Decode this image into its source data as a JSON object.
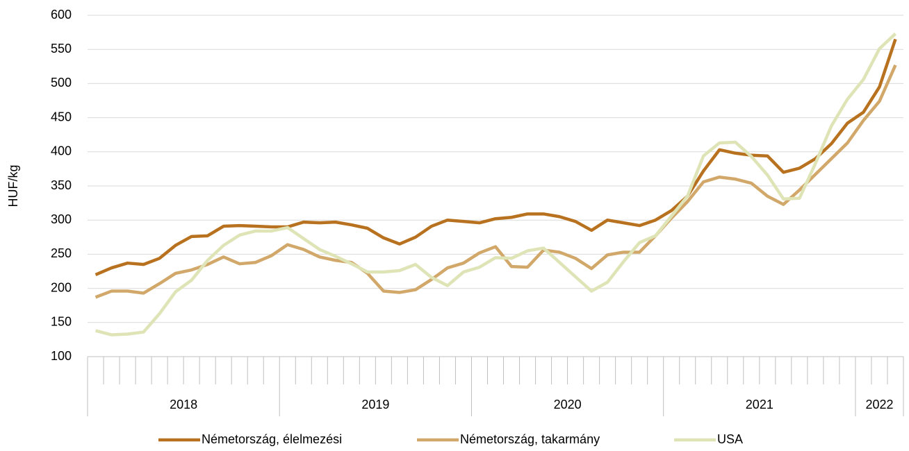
{
  "chart_data": {
    "type": "line",
    "y_label": "HUF/kg",
    "categories": [
      null,
      null,
      null,
      null,
      null,
      null,
      null,
      null,
      null,
      null,
      null,
      null,
      null,
      null,
      null,
      null,
      null,
      null,
      null,
      null,
      null,
      null,
      null,
      null,
      null,
      null,
      null,
      null,
      null,
      null,
      null,
      null,
      null,
      null,
      null,
      null,
      null,
      null,
      null,
      null,
      null,
      null,
      null,
      null,
      null,
      null,
      null,
      null,
      null,
      null,
      null
    ],
    "year_groups": [
      "2018",
      "2019",
      "2020",
      "2021",
      "2022"
    ],
    "group_sizes": [
      12,
      12,
      12,
      12,
      3
    ],
    "ylim": [
      100,
      600
    ],
    "yticks": [
      100,
      150,
      200,
      250,
      300,
      350,
      400,
      450,
      500,
      550,
      600
    ],
    "grid": true,
    "legend": "bottom",
    "series": [
      {
        "name": "Németország, élelmezési",
        "color": "#b8721f",
        "values": [
          220,
          230,
          237,
          235,
          244,
          263,
          276,
          277,
          291,
          292,
          291,
          290,
          290,
          297,
          296,
          297,
          293,
          288,
          274,
          265,
          275,
          291,
          300,
          298,
          296,
          302,
          304,
          309,
          309,
          305,
          298,
          285,
          300,
          296,
          292,
          300,
          314,
          335,
          372,
          403,
          398,
          395,
          394,
          370,
          376,
          390,
          412,
          442,
          458,
          495,
          565
        ]
      },
      {
        "name": "Németország, takarmány",
        "color": "#d2a86a",
        "values": [
          187,
          196,
          196,
          193,
          207,
          222,
          227,
          235,
          246,
          236,
          238,
          248,
          264,
          257,
          246,
          241,
          238,
          222,
          196,
          194,
          198,
          213,
          230,
          237,
          252,
          261,
          232,
          231,
          256,
          253,
          244,
          229,
          249,
          253,
          253,
          277,
          303,
          327,
          356,
          363,
          360,
          354,
          335,
          323,
          344,
          367,
          390,
          413,
          446,
          474,
          527
        ]
      },
      {
        "name": "USA",
        "color": "#dfe4b6",
        "values": [
          138,
          132,
          133,
          136,
          163,
          195,
          212,
          241,
          263,
          278,
          284,
          284,
          289,
          273,
          257,
          247,
          236,
          224,
          224,
          226,
          235,
          216,
          204,
          224,
          231,
          245,
          244,
          255,
          259,
          238,
          217,
          196,
          209,
          239,
          267,
          277,
          306,
          335,
          394,
          413,
          414,
          393,
          366,
          331,
          332,
          383,
          438,
          477,
          506,
          551,
          573
        ]
      }
    ]
  }
}
